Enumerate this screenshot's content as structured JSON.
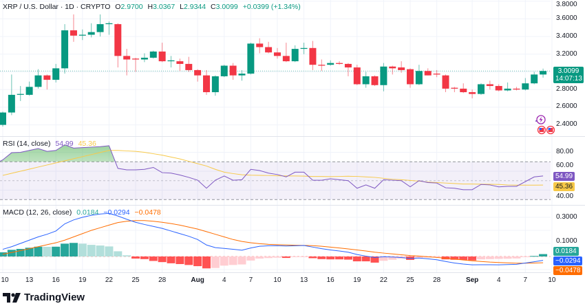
{
  "header": {
    "symbol": "XRP / U.S. Dollar · 1D · CRYPTO",
    "o_label": "O",
    "o": "2.9700",
    "h_label": "H",
    "h": "3.0367",
    "l_label": "L",
    "l": "2.9344",
    "c_label": "C",
    "c": "3.0099",
    "change": "+0.0399 (+1.34%)"
  },
  "price_axis": {
    "ticks": [
      "3.8000",
      "3.6000",
      "3.4000",
      "3.2000",
      "2.8000",
      "2.6000",
      "2.4000"
    ],
    "last_price": "3.0099",
    "countdown": "14:07:13"
  },
  "rsi": {
    "label": "RSI (14, close)",
    "value": "54.99",
    "ma_value": "45.36",
    "ticks": [
      "80.00",
      "60.00",
      "40.00"
    ]
  },
  "macd": {
    "label": "MACD (12, 26, close)",
    "hist_value": "0.0184",
    "macd_value": "−0.0294",
    "signal_value": "−0.0478",
    "ticks": [
      "0.3000",
      "0.1000"
    ]
  },
  "date_axis": [
    "10",
    "13",
    "16",
    "19",
    "22",
    "25",
    "28",
    "Aug",
    "4",
    "7",
    "10",
    "13",
    "16",
    "19",
    "22",
    "25",
    "28",
    "Sep",
    "4",
    "7",
    "10"
  ],
  "brand": "TradingView",
  "colors": {
    "up": "#089981",
    "down": "#f23645",
    "rsi": "#7e57c2",
    "rsi_ma": "#f7c948",
    "macd": "#2962ff",
    "signal": "#ff6d00",
    "hist_up_strong": "#26a69a",
    "hist_up_weak": "#b2dfdb",
    "hist_down_strong": "#ff5252",
    "hist_down_weak": "#ffcdd2"
  },
  "icons": [
    "lightning-event-icon",
    "us-flag-event-icon",
    "us-flag-event-icon"
  ],
  "chart_data": {
    "type": "candlestick",
    "x_start": "Jul 10",
    "x_end": "Sep 9",
    "ylim": [
      2.4,
      3.8
    ],
    "ohlc": [
      [
        2.4,
        2.55,
        2.38,
        2.54
      ],
      [
        2.54,
        2.97,
        2.51,
        2.74
      ],
      [
        2.74,
        2.84,
        2.67,
        2.75
      ],
      [
        2.74,
        2.89,
        2.73,
        2.83
      ],
      [
        2.83,
        3.03,
        2.81,
        2.96
      ],
      [
        2.96,
        2.97,
        2.8,
        2.91
      ],
      [
        2.91,
        3.09,
        2.88,
        3.04
      ],
      [
        3.04,
        3.54,
        2.98,
        3.47
      ],
      [
        3.47,
        3.65,
        3.34,
        3.41
      ],
      [
        3.41,
        3.48,
        3.36,
        3.42
      ],
      [
        3.42,
        3.55,
        3.39,
        3.45
      ],
      [
        3.45,
        3.65,
        3.4,
        3.54
      ],
      [
        3.54,
        3.57,
        3.42,
        3.55
      ],
      [
        3.54,
        3.55,
        3.05,
        3.18
      ],
      [
        3.18,
        3.26,
        2.96,
        3.14
      ],
      [
        3.15,
        3.16,
        3.0,
        3.14
      ],
      [
        3.14,
        3.21,
        3.11,
        3.16
      ],
      [
        3.16,
        3.24,
        3.15,
        3.23
      ],
      [
        3.23,
        3.33,
        3.11,
        3.12
      ],
      [
        3.12,
        3.18,
        3.05,
        3.13
      ],
      [
        3.12,
        3.15,
        3.01,
        3.09
      ],
      [
        3.09,
        3.17,
        3.0,
        3.02
      ],
      [
        3.02,
        3.03,
        2.89,
        2.96
      ],
      [
        2.96,
        3.02,
        2.74,
        2.77
      ],
      [
        2.77,
        2.96,
        2.73,
        2.95
      ],
      [
        2.95,
        3.08,
        2.94,
        3.07
      ],
      [
        3.07,
        3.1,
        2.91,
        2.96
      ],
      [
        2.96,
        3.02,
        2.9,
        2.98
      ],
      [
        2.98,
        3.33,
        2.97,
        3.32
      ],
      [
        3.32,
        3.38,
        3.21,
        3.28
      ],
      [
        3.28,
        3.34,
        3.21,
        3.22
      ],
      [
        3.22,
        3.27,
        3.15,
        3.18
      ],
      [
        3.18,
        3.33,
        3.11,
        3.12
      ],
      [
        3.12,
        3.3,
        3.11,
        3.26
      ],
      [
        3.26,
        3.33,
        3.2,
        3.27
      ],
      [
        3.27,
        3.35,
        3.02,
        3.08
      ],
      [
        3.08,
        3.14,
        3.01,
        3.07
      ],
      [
        3.08,
        3.13,
        3.07,
        3.1
      ],
      [
        3.1,
        3.12,
        3.08,
        3.09
      ],
      [
        3.09,
        3.1,
        2.95,
        3.05
      ],
      [
        3.05,
        3.08,
        2.85,
        2.86
      ],
      [
        2.86,
        3.0,
        2.82,
        2.95
      ],
      [
        2.95,
        2.96,
        2.84,
        2.85
      ],
      [
        2.85,
        3.1,
        2.78,
        3.06
      ],
      [
        3.06,
        3.07,
        2.97,
        3.04
      ],
      [
        3.05,
        3.12,
        2.99,
        3.02
      ],
      [
        3.03,
        3.04,
        2.82,
        2.86
      ],
      [
        2.86,
        3.08,
        2.85,
        3.01
      ],
      [
        3.01,
        3.04,
        2.96,
        2.96
      ],
      [
        2.98,
        3.02,
        2.94,
        2.97
      ],
      [
        2.96,
        2.97,
        2.77,
        2.81
      ],
      [
        2.82,
        2.83,
        2.77,
        2.81
      ],
      [
        2.81,
        2.87,
        2.76,
        2.77
      ],
      [
        2.77,
        2.8,
        2.7,
        2.75
      ],
      [
        2.75,
        2.87,
        2.74,
        2.86
      ],
      [
        2.86,
        2.9,
        2.8,
        2.84
      ],
      [
        2.84,
        2.86,
        2.78,
        2.79
      ],
      [
        2.79,
        2.88,
        2.78,
        2.81
      ],
      [
        2.81,
        2.83,
        2.79,
        2.8
      ],
      [
        2.8,
        2.93,
        2.79,
        2.87
      ],
      [
        2.87,
        3.0,
        2.86,
        2.97
      ],
      [
        2.97,
        3.0367,
        2.9344,
        3.0099
      ]
    ],
    "rsi": [
      72,
      79.6,
      80,
      82,
      84,
      81,
      82,
      88,
      84.5,
      85,
      85.5,
      86,
      87,
      63,
      61.5,
      61.5,
      62,
      64,
      58.5,
      58,
      56,
      53.5,
      50.5,
      42,
      50.5,
      55,
      50.5,
      51,
      62,
      60.7,
      58,
      56.5,
      54,
      59,
      59,
      50.5,
      50.5,
      52,
      51,
      50,
      42,
      45.5,
      42,
      51,
      50.5,
      50,
      43.5,
      50,
      48,
      47.5,
      42.5,
      42,
      40.5,
      40.5,
      46,
      45.5,
      43.5,
      44,
      44,
      49,
      54,
      54.99
    ],
    "rsi_ma": [
      55.6,
      57.8,
      60,
      62.2,
      64.4,
      66.6,
      68.8,
      71,
      73.2,
      75.4,
      77.6,
      79.8,
      82,
      82,
      81.5,
      81,
      80,
      78.5,
      77,
      75,
      73,
      70.5,
      68,
      65.5,
      62,
      59,
      57.5,
      56.3,
      55.8,
      55.6,
      55.5,
      55.2,
      55,
      55,
      54.8,
      54.5,
      54.5,
      54.3,
      54.5,
      54.7,
      54.5,
      54,
      53.5,
      52.5,
      51.5,
      51,
      50.3,
      49.5,
      48.5,
      48,
      47.5,
      47,
      46.5,
      46.5,
      46.3,
      46.2,
      46,
      45.5,
      45.3,
      45.3,
      45.3,
      45.36
    ],
    "rsi_bands": [
      70,
      50,
      30
    ],
    "macd_line": [
      0.055,
      0.075,
      0.1,
      0.125,
      0.15,
      0.17,
      0.195,
      0.25,
      0.28,
      0.3,
      0.315,
      0.325,
      0.33,
      0.31,
      0.285,
      0.262,
      0.245,
      0.23,
      0.215,
      0.195,
      0.175,
      0.155,
      0.13,
      0.088,
      0.068,
      0.062,
      0.055,
      0.048,
      0.065,
      0.078,
      0.082,
      0.083,
      0.08,
      0.082,
      0.084,
      0.072,
      0.06,
      0.05,
      0.042,
      0.033,
      0.015,
      0.003,
      -0.008,
      -0.002,
      -0.004,
      -0.008,
      -0.015,
      -0.012,
      -0.018,
      -0.025,
      -0.038,
      -0.05,
      -0.058,
      -0.064,
      -0.063,
      -0.063,
      -0.064,
      -0.062,
      -0.06,
      -0.05,
      -0.04,
      -0.0294
    ],
    "signal_line": [
      0.018,
      0.03,
      0.045,
      0.06,
      0.075,
      0.09,
      0.105,
      0.125,
      0.15,
      0.175,
      0.2,
      0.22,
      0.24,
      0.26,
      0.27,
      0.275,
      0.275,
      0.27,
      0.262,
      0.252,
      0.24,
      0.225,
      0.21,
      0.19,
      0.17,
      0.15,
      0.13,
      0.115,
      0.105,
      0.098,
      0.093,
      0.09,
      0.088,
      0.086,
      0.085,
      0.083,
      0.078,
      0.072,
      0.065,
      0.058,
      0.05,
      0.042,
      0.033,
      0.026,
      0.02,
      0.013,
      0.007,
      0.003,
      -0.002,
      -0.007,
      -0.013,
      -0.02,
      -0.027,
      -0.033,
      -0.038,
      -0.043,
      -0.046,
      -0.049,
      -0.051,
      -0.051,
      -0.05,
      -0.0478
    ],
    "histogram": [
      0.032,
      0.051,
      0.058,
      0.067,
      0.075,
      0.074,
      0.075,
      0.098,
      0.104,
      0.098,
      0.089,
      0.084,
      0.077,
      0.04,
      0.009,
      -0.016,
      -0.02,
      -0.034,
      -0.043,
      -0.052,
      -0.058,
      -0.065,
      -0.074,
      -0.091,
      -0.088,
      -0.07,
      -0.065,
      -0.061,
      -0.031,
      -0.016,
      -0.012,
      -0.009,
      -0.011,
      -0.004,
      -0.002,
      -0.013,
      -0.02,
      -0.022,
      -0.022,
      -0.024,
      -0.037,
      -0.037,
      -0.047,
      -0.033,
      -0.025,
      -0.016,
      -0.026,
      -0.012,
      -0.008,
      -0.006,
      -0.022,
      -0.025,
      -0.026,
      -0.03,
      -0.022,
      -0.02,
      -0.018,
      -0.017,
      -0.015,
      -0.003,
      0.004,
      0.0184
    ]
  }
}
